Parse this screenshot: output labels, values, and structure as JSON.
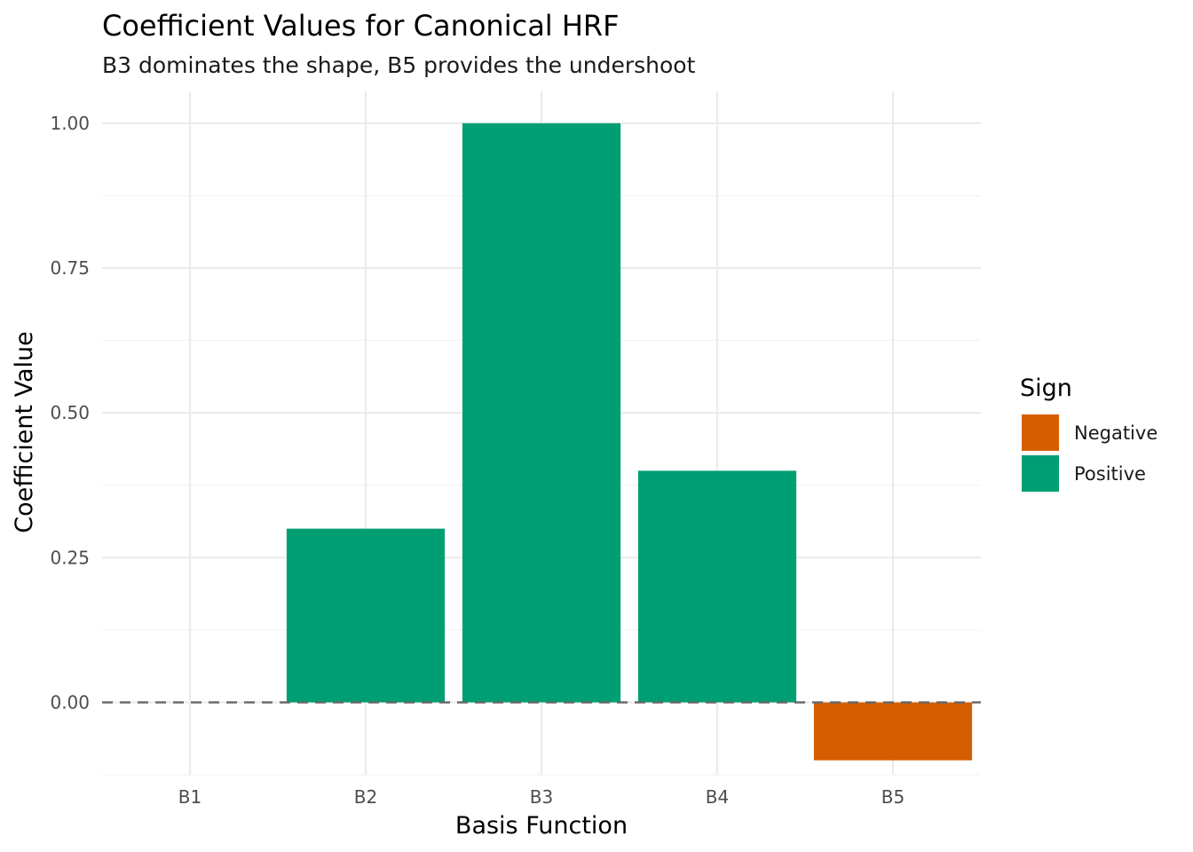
{
  "chart_data": {
    "type": "bar",
    "title": "Coefficient Values for Canonical HRF",
    "subtitle": "B3 dominates the shape, B5 provides the undershoot",
    "xlabel": "Basis Function",
    "ylabel": "Coefficient Value",
    "categories": [
      "B1",
      "B2",
      "B3",
      "B4",
      "B5"
    ],
    "values": [
      0.0,
      0.3,
      1.0,
      0.4,
      -0.1
    ],
    "signs": [
      "Positive",
      "Positive",
      "Positive",
      "Positive",
      "Negative"
    ],
    "ylim": [
      -0.125,
      1.055
    ],
    "yticks": [
      0.0,
      0.25,
      0.5,
      0.75,
      1.0
    ],
    "ytick_labels": [
      "0.00",
      "0.25",
      "0.50",
      "0.75",
      "1.00"
    ],
    "reference_line": {
      "y": 0,
      "style": "dashed"
    },
    "grid": true,
    "legend": {
      "title": "Sign",
      "placement": "right",
      "entries": [
        {
          "label": "Negative",
          "color": "#D55E00"
        },
        {
          "label": "Positive",
          "color": "#009E73"
        }
      ]
    },
    "colors": {
      "Positive": "#009E73",
      "Negative": "#D55E00"
    }
  }
}
